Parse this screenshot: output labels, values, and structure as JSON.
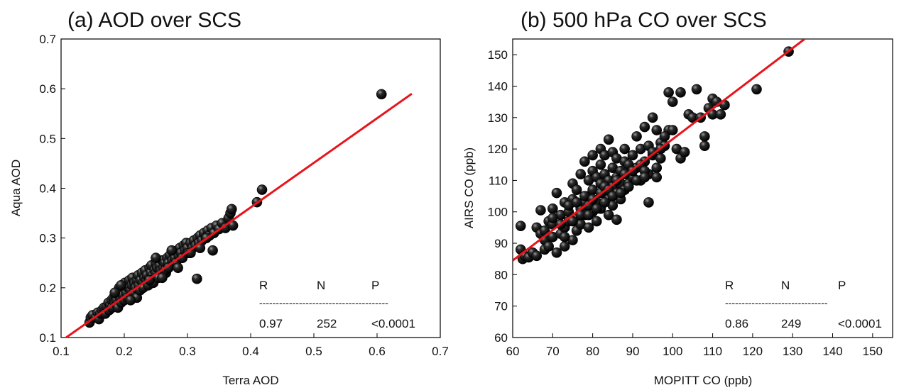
{
  "chart_data": [
    {
      "type": "scatter",
      "title": "(a) AOD over SCS",
      "xlabel": "Terra AOD",
      "ylabel": "Aqua AOD",
      "xlim": [
        0.1,
        0.7
      ],
      "ylim": [
        0.1,
        0.7
      ],
      "xticks": [
        "0.1",
        "0.2",
        "0.3",
        "0.4",
        "0.5",
        "0.6",
        "0.7"
      ],
      "yticks": [
        "0.1",
        "0.2",
        "0.3",
        "0.4",
        "0.5",
        "0.6",
        "0.7"
      ],
      "point_color": "#000000",
      "fit_line": {
        "color": "#e8141b",
        "x": [
          0.108,
          0.655
        ],
        "y": [
          0.1,
          0.59
        ]
      },
      "stats": {
        "headers": [
          "R",
          "N",
          "P"
        ],
        "divider": "---------------------------------------",
        "values": [
          "0.97",
          "252",
          "<0.0001"
        ]
      },
      "points": [
        [
          0.145,
          0.13
        ],
        [
          0.147,
          0.14
        ],
        [
          0.15,
          0.145
        ],
        [
          0.155,
          0.14
        ],
        [
          0.158,
          0.15
        ],
        [
          0.16,
          0.137
        ],
        [
          0.162,
          0.148
        ],
        [
          0.165,
          0.155
        ],
        [
          0.168,
          0.16
        ],
        [
          0.17,
          0.148
        ],
        [
          0.172,
          0.162
        ],
        [
          0.175,
          0.17
        ],
        [
          0.176,
          0.155
        ],
        [
          0.178,
          0.165
        ],
        [
          0.18,
          0.175
        ],
        [
          0.181,
          0.16
        ],
        [
          0.183,
          0.18
        ],
        [
          0.185,
          0.17
        ],
        [
          0.186,
          0.185
        ],
        [
          0.188,
          0.175
        ],
        [
          0.19,
          0.19
        ],
        [
          0.19,
          0.16
        ],
        [
          0.192,
          0.2
        ],
        [
          0.193,
          0.18
        ],
        [
          0.195,
          0.17
        ],
        [
          0.196,
          0.195
        ],
        [
          0.198,
          0.185
        ],
        [
          0.2,
          0.175
        ],
        [
          0.2,
          0.2
        ],
        [
          0.201,
          0.21
        ],
        [
          0.203,
          0.19
        ],
        [
          0.205,
          0.18
        ],
        [
          0.206,
          0.2
        ],
        [
          0.208,
          0.215
        ],
        [
          0.21,
          0.185
        ],
        [
          0.21,
          0.195
        ],
        [
          0.212,
          0.205
        ],
        [
          0.213,
          0.22
        ],
        [
          0.215,
          0.19
        ],
        [
          0.216,
          0.21
        ],
        [
          0.218,
          0.2
        ],
        [
          0.22,
          0.215
        ],
        [
          0.22,
          0.18
        ],
        [
          0.222,
          0.225
        ],
        [
          0.223,
          0.205
        ],
        [
          0.225,
          0.195
        ],
        [
          0.226,
          0.215
        ],
        [
          0.228,
          0.23
        ],
        [
          0.23,
          0.21
        ],
        [
          0.23,
          0.2
        ],
        [
          0.232,
          0.22
        ],
        [
          0.233,
          0.235
        ],
        [
          0.235,
          0.215
        ],
        [
          0.236,
          0.225
        ],
        [
          0.238,
          0.205
        ],
        [
          0.24,
          0.24
        ],
        [
          0.24,
          0.22
        ],
        [
          0.242,
          0.23
        ],
        [
          0.243,
          0.245
        ],
        [
          0.245,
          0.225
        ],
        [
          0.246,
          0.21
        ],
        [
          0.248,
          0.235
        ],
        [
          0.25,
          0.25
        ],
        [
          0.25,
          0.23
        ],
        [
          0.252,
          0.24
        ],
        [
          0.254,
          0.22
        ],
        [
          0.256,
          0.245
        ],
        [
          0.258,
          0.235
        ],
        [
          0.26,
          0.255
        ],
        [
          0.262,
          0.24
        ],
        [
          0.264,
          0.25
        ],
        [
          0.266,
          0.23
        ],
        [
          0.268,
          0.26
        ],
        [
          0.27,
          0.25
        ],
        [
          0.272,
          0.265
        ],
        [
          0.274,
          0.245
        ],
        [
          0.276,
          0.255
        ],
        [
          0.278,
          0.27
        ],
        [
          0.28,
          0.26
        ],
        [
          0.282,
          0.25
        ],
        [
          0.284,
          0.275
        ],
        [
          0.286,
          0.265
        ],
        [
          0.288,
          0.28
        ],
        [
          0.29,
          0.27
        ],
        [
          0.292,
          0.26
        ],
        [
          0.294,
          0.285
        ],
        [
          0.296,
          0.275
        ],
        [
          0.298,
          0.29
        ],
        [
          0.3,
          0.28
        ],
        [
          0.302,
          0.27
        ],
        [
          0.305,
          0.29
        ],
        [
          0.308,
          0.28
        ],
        [
          0.31,
          0.295
        ],
        [
          0.313,
          0.285
        ],
        [
          0.316,
          0.3
        ],
        [
          0.318,
          0.29
        ],
        [
          0.32,
          0.305
        ],
        [
          0.323,
          0.295
        ],
        [
          0.326,
          0.31
        ],
        [
          0.329,
          0.3
        ],
        [
          0.332,
          0.315
        ],
        [
          0.335,
          0.305
        ],
        [
          0.338,
          0.32
        ],
        [
          0.342,
          0.31
        ],
        [
          0.346,
          0.325
        ],
        [
          0.35,
          0.318
        ],
        [
          0.355,
          0.33
        ],
        [
          0.36,
          0.32
        ],
        [
          0.365,
          0.34
        ],
        [
          0.368,
          0.35
        ],
        [
          0.37,
          0.358
        ],
        [
          0.372,
          0.325
        ],
        [
          0.315,
          0.218
        ],
        [
          0.275,
          0.275
        ],
        [
          0.265,
          0.235
        ],
        [
          0.24,
          0.215
        ],
        [
          0.21,
          0.175
        ],
        [
          0.195,
          0.205
        ],
        [
          0.185,
          0.19
        ],
        [
          0.305,
          0.27
        ],
        [
          0.32,
          0.28
        ],
        [
          0.33,
          0.3
        ],
        [
          0.34,
          0.275
        ],
        [
          0.25,
          0.26
        ],
        [
          0.26,
          0.22
        ],
        [
          0.27,
          0.24
        ],
        [
          0.285,
          0.24
        ],
        [
          0.41,
          0.372
        ],
        [
          0.418,
          0.397
        ],
        [
          0.607,
          0.589
        ]
      ]
    },
    {
      "type": "scatter",
      "title": "(b) 500 hPa CO over SCS",
      "xlabel": "MOPITT CO (ppb)",
      "ylabel": "AIRS CO (ppb)",
      "xlim": [
        60,
        155
      ],
      "ylim": [
        60,
        155
      ],
      "xticks": [
        "60",
        "70",
        "80",
        "90",
        "100",
        "110",
        "120",
        "130",
        "140",
        "150"
      ],
      "yticks": [
        "60",
        "70",
        "80",
        "90",
        "100",
        "110",
        "120",
        "130",
        "140",
        "150"
      ],
      "point_color": "#000000",
      "fit_line": {
        "color": "#e8141b",
        "x": [
          60,
          133
        ],
        "y": [
          84.5,
          155
        ]
      },
      "stats": {
        "headers": [
          "R",
          "N",
          "P"
        ],
        "divider": "-------------------------------",
        "values": [
          "0.86",
          "249",
          "<0.0001"
        ]
      },
      "points": [
        [
          62,
          95.5
        ],
        [
          62,
          88
        ],
        [
          62.5,
          85
        ],
        [
          63,
          86
        ],
        [
          64,
          85.5
        ],
        [
          65,
          87
        ],
        [
          66,
          86
        ],
        [
          66,
          95
        ],
        [
          67,
          100.5
        ],
        [
          67,
          93
        ],
        [
          68,
          88
        ],
        [
          68,
          91
        ],
        [
          69,
          97
        ],
        [
          69,
          89
        ],
        [
          70,
          92
        ],
        [
          70,
          101
        ],
        [
          70,
          96
        ],
        [
          71,
          87
        ],
        [
          71,
          106
        ],
        [
          72,
          99
        ],
        [
          72,
          93
        ],
        [
          73,
          95
        ],
        [
          73,
          103
        ],
        [
          73,
          89
        ],
        [
          74,
          97
        ],
        [
          74,
          100
        ],
        [
          75,
          104
        ],
        [
          75,
          91
        ],
        [
          75,
          109
        ],
        [
          76,
          98
        ],
        [
          76,
          94
        ],
        [
          76,
          107
        ],
        [
          77,
          101
        ],
        [
          77,
          112
        ],
        [
          77,
          96
        ],
        [
          78,
          103
        ],
        [
          78,
          99
        ],
        [
          78,
          116
        ],
        [
          79,
          105
        ],
        [
          79,
          110
        ],
        [
          79,
          95
        ],
        [
          80,
          113
        ],
        [
          80,
          100
        ],
        [
          80,
          107
        ],
        [
          80,
          118
        ],
        [
          81,
          111
        ],
        [
          81,
          103
        ],
        [
          81,
          97
        ],
        [
          82,
          109
        ],
        [
          82,
          115
        ],
        [
          82,
          120
        ],
        [
          82,
          101
        ],
        [
          83,
          106
        ],
        [
          83,
          112
        ],
        [
          83,
          118
        ],
        [
          84,
          104
        ],
        [
          84,
          110
        ],
        [
          84,
          123
        ],
        [
          84,
          99
        ],
        [
          85,
          108
        ],
        [
          85,
          114
        ],
        [
          85,
          119
        ],
        [
          85,
          102
        ],
        [
          86,
          111
        ],
        [
          86,
          106
        ],
        [
          86,
          117
        ],
        [
          86,
          97.5
        ],
        [
          87,
          113
        ],
        [
          87,
          109
        ],
        [
          87,
          104
        ],
        [
          88,
          116
        ],
        [
          88,
          120
        ],
        [
          88,
          107
        ],
        [
          89,
          112
        ],
        [
          89,
          109
        ],
        [
          90,
          118
        ],
        [
          90,
          111
        ],
        [
          91,
          114
        ],
        [
          91,
          124
        ],
        [
          92,
          110
        ],
        [
          92,
          120
        ],
        [
          93,
          116
        ],
        [
          93,
          127
        ],
        [
          94,
          112
        ],
        [
          94,
          121
        ],
        [
          94,
          103
        ],
        [
          95,
          118
        ],
        [
          95,
          130
        ],
        [
          96,
          114
        ],
        [
          96,
          126
        ],
        [
          96,
          111
        ],
        [
          97,
          117
        ],
        [
          97,
          122
        ],
        [
          98,
          121
        ],
        [
          99,
          138
        ],
        [
          99,
          126
        ],
        [
          100,
          135
        ],
        [
          101,
          120
        ],
        [
          102,
          138
        ],
        [
          102,
          117
        ],
        [
          103,
          119
        ],
        [
          104,
          131
        ],
        [
          105,
          130
        ],
        [
          106,
          139
        ],
        [
          107,
          130
        ],
        [
          108,
          121
        ],
        [
          108,
          124
        ],
        [
          109,
          133
        ],
        [
          110,
          131
        ],
        [
          110,
          136
        ],
        [
          111,
          135
        ],
        [
          112,
          131
        ],
        [
          113,
          134
        ],
        [
          121,
          139
        ],
        [
          129,
          151
        ],
        [
          72,
          96
        ],
        [
          74,
          102
        ],
        [
          76,
          103
        ],
        [
          78,
          105
        ],
        [
          79,
          102
        ],
        [
          80,
          104
        ],
        [
          82,
          106
        ],
        [
          83,
          108
        ],
        [
          84,
          107
        ],
        [
          86,
          110
        ],
        [
          88,
          112
        ],
        [
          89,
          115
        ],
        [
          90,
          113
        ],
        [
          92,
          115
        ],
        [
          93,
          113
        ],
        [
          95,
          119
        ],
        [
          97,
          120
        ],
        [
          98,
          124
        ],
        [
          100,
          126
        ],
        [
          68,
          94
        ],
        [
          70,
          98
        ],
        [
          73,
          92
        ],
        [
          75,
          97
        ],
        [
          77,
          99
        ],
        [
          79,
          99
        ],
        [
          81,
          101
        ],
        [
          83,
          103
        ],
        [
          85,
          105
        ],
        [
          87,
          106
        ],
        [
          89,
          108
        ],
        [
          91,
          110
        ],
        [
          93,
          111
        ]
      ]
    }
  ]
}
